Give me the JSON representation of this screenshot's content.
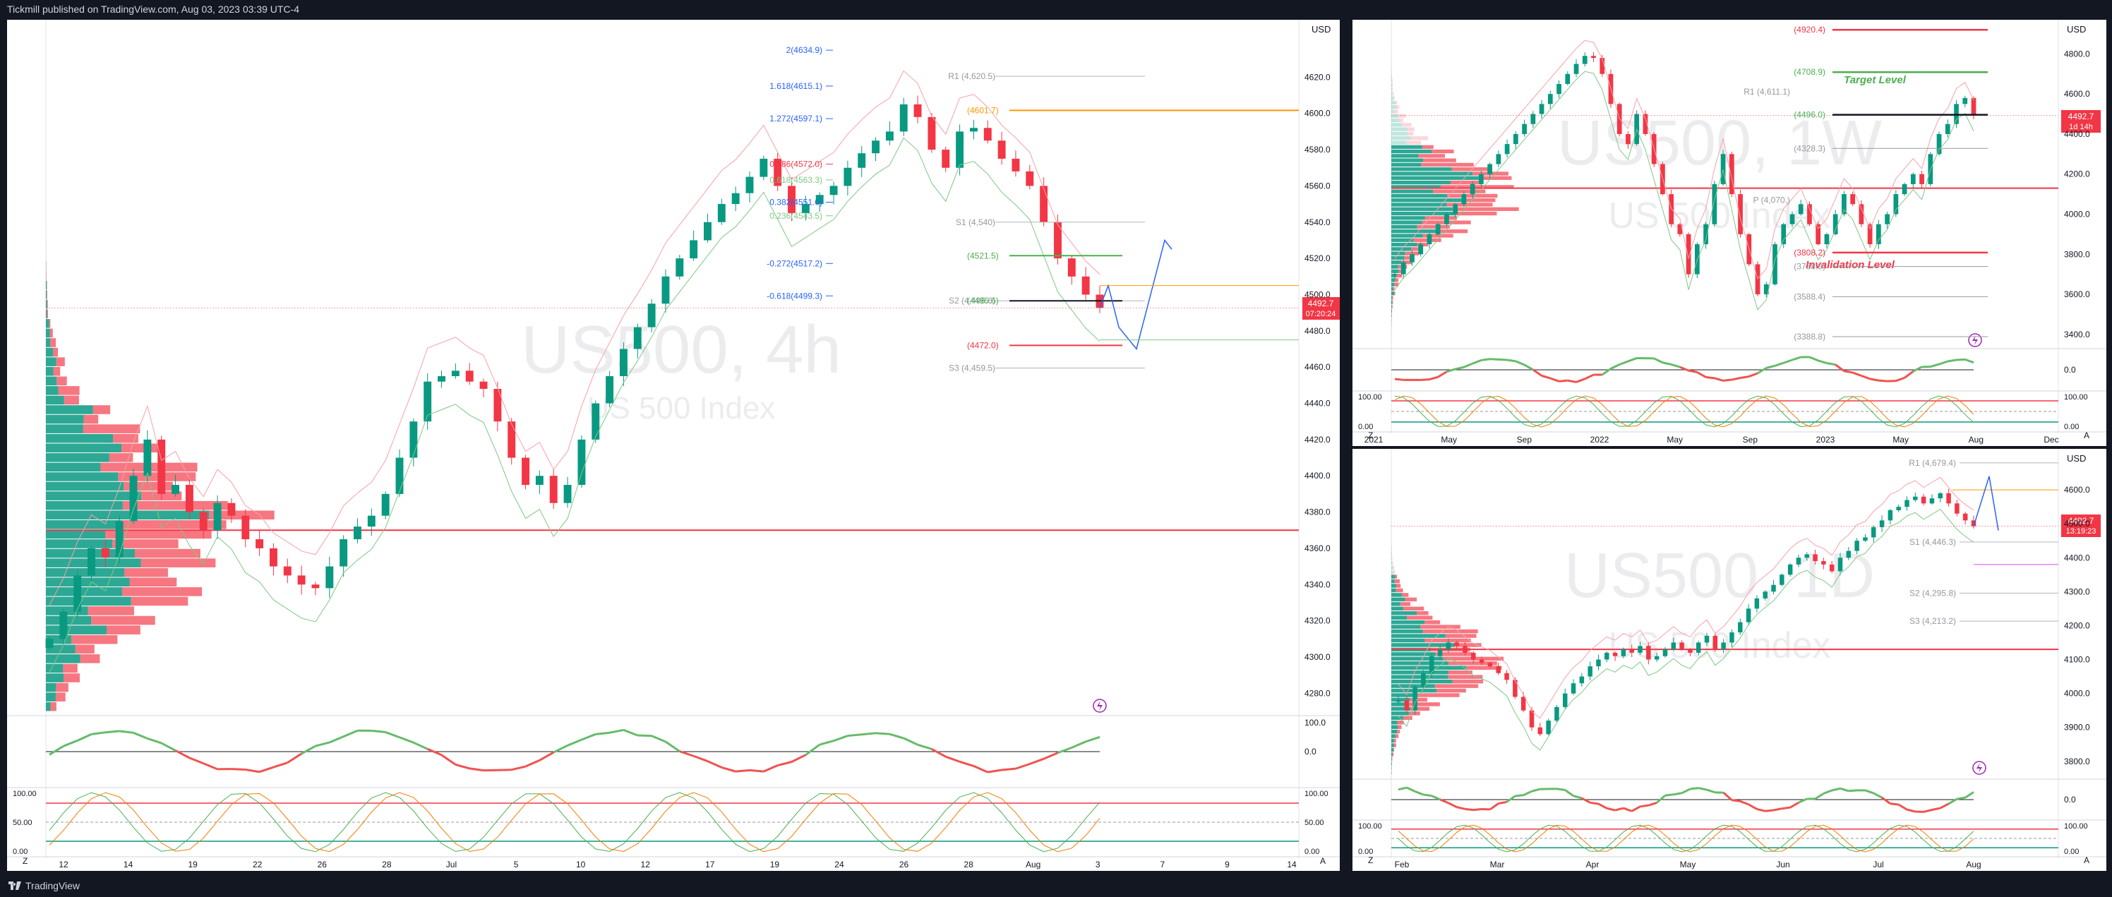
{
  "header": {
    "published": "Tickmill published on TradingView.com, Aug 03, 2023 03:39 UTC-4"
  },
  "footer": {
    "brand": "TradingView",
    "logo_icon": "tradingview-logo-icon"
  },
  "colors": {
    "bull": "#089981",
    "bear": "#f23645",
    "price_tag": "#f23645",
    "fib_blue": "#2962ff",
    "pivot_gray": "#9598a1",
    "target_green": "#4caf50",
    "orange": "#ff9800"
  },
  "main_panel": {
    "currency": "USD",
    "watermark_symbol": "US500, 4h",
    "watermark_name": "US 500 Index",
    "price_tag": "4492.7",
    "price_timer": "07:20:24",
    "price_axis": [
      "4620.0",
      "4600.0",
      "4580.0",
      "4560.0",
      "4540.0",
      "4520.0",
      "4500.0",
      "4480.0",
      "4460.0",
      "4440.0",
      "4420.0",
      "4400.0",
      "4380.0",
      "4360.0",
      "4340.0",
      "4320.0",
      "4300.0",
      "4280.0"
    ],
    "time_axis": [
      "12",
      "14",
      "19",
      "22",
      "26",
      "28",
      "Jul",
      "5",
      "10",
      "12",
      "17",
      "19",
      "24",
      "26",
      "28",
      "Aug",
      "3",
      "7",
      "9",
      "14"
    ],
    "fib_labels": [
      "2(4634.9)",
      "1.618(4615.1)",
      "1.272(4597.1)",
      "0.786(4572.0)",
      "0.618(4563.3)",
      "0.382(4551.0)",
      "0.236(4543.5)",
      "-0.272(4517.2)",
      "-0.618(4499.3)"
    ],
    "pivot_labels": [
      "R1 (4,620.5)",
      "S1 (4,540)",
      "S2 (4,496.6)",
      "S3 (4,459.5)"
    ],
    "level_labels": [
      "4601.7",
      "4521.5",
      "4496.6",
      "4472.0"
    ],
    "osc1_axis": [
      "100.0",
      "0.0"
    ],
    "osc2_axis": [
      "100.00",
      "50.00",
      "0.00"
    ],
    "corner_z": "Z",
    "corner_a": "A",
    "lightning_icon": "lightning-icon"
  },
  "weekly_panel": {
    "currency": "USD",
    "watermark_symbol": "US500, 1W",
    "watermark_name": "US 500 Index",
    "price_tag": "4492.7",
    "price_timer": "1d 14h",
    "price_axis": [
      "4800.0",
      "4600.0",
      "4400.0",
      "4200.0",
      "4000.0",
      "3800.0",
      "3600.0",
      "3400.0"
    ],
    "time_axis": [
      "2021",
      "May",
      "Sep",
      "2022",
      "May",
      "Sep",
      "2023",
      "May",
      "Aug",
      "Dec"
    ],
    "level_labels": [
      "4920.4",
      "4708.9",
      "4496.0",
      "4328.3",
      "3808.2",
      "3738.9",
      "3588.4",
      "3388.8"
    ],
    "pivot_labels": [
      "R1 (4,611.1)",
      "P (4,070.)"
    ],
    "annotations": [
      "Target Level",
      "Invalidation Level"
    ],
    "osc1_axis": [
      "0.0"
    ],
    "osc2_axis": [
      "100.00",
      "0.00"
    ],
    "corner_z": "Z",
    "corner_a": "A"
  },
  "daily_panel": {
    "currency": "USD",
    "watermark_symbol": "US500, 1D",
    "watermark_name": "US 500 Index",
    "price_tag": "4492.7",
    "price_timer": "13:19:23",
    "price_axis": [
      "4600.0",
      "4500.0",
      "4400.0",
      "4300.0",
      "4200.0",
      "4100.0",
      "4000.0",
      "3900.0",
      "3800.0"
    ],
    "time_axis": [
      "Feb",
      "Mar",
      "Apr",
      "May",
      "Jun",
      "Jul",
      "Aug"
    ],
    "pivot_labels": [
      "R1 (4,679.4)",
      "S1 (4,446.3)",
      "S2 (4,295.8)",
      "S3 (4,213.2)"
    ],
    "osc1_axis": [
      "0.0"
    ],
    "osc2_axis": [
      "100.00",
      "0.00"
    ],
    "corner_z": "Z",
    "corner_a": "A"
  },
  "chart_data": [
    {
      "type": "candlestick",
      "timeframe": "4h",
      "symbol": "US500",
      "ylim": [
        4270,
        4640
      ],
      "last_price": 4492.7,
      "close_path": [
        4310,
        4325,
        4345,
        4360,
        4355,
        4375,
        4400,
        4420,
        4390,
        4395,
        4380,
        4370,
        4385,
        4378,
        4365,
        4360,
        4350,
        4345,
        4340,
        4338,
        4350,
        4365,
        4372,
        4378,
        4390,
        4410,
        4430,
        4452,
        4455,
        4458,
        4452,
        4448,
        4430,
        4410,
        4395,
        4400,
        4385,
        4395,
        4420,
        4440,
        4455,
        4470,
        4482,
        4495,
        4510,
        4520,
        4530,
        4540,
        4550,
        4556,
        4565,
        4575,
        4560,
        4545,
        4550,
        4555,
        4560,
        4570,
        4578,
        4585,
        4590,
        4605,
        4598,
        4580,
        4570,
        4590,
        4592,
        4585,
        4575,
        4568,
        4560,
        4540,
        4520,
        4510,
        4500,
        4492.7
      ],
      "levels": {
        "r1": 4620.5,
        "s1": 4540,
        "s2": 4496.6,
        "s3": 4459.5,
        "resistance": 4601.7,
        "level_4521": 4521.5,
        "level_4472": 4472.0,
        "support_red": 4370
      }
    },
    {
      "type": "candlestick",
      "timeframe": "1W",
      "symbol": "US500",
      "ylim": [
        3350,
        4900
      ],
      "last_price": 4492.7,
      "close_path": [
        3700,
        3760,
        3800,
        3850,
        3900,
        3950,
        4000,
        4050,
        4100,
        4150,
        4200,
        4250,
        4300,
        4350,
        4400,
        4450,
        4500,
        4550,
        4600,
        4650,
        4700,
        4750,
        4790,
        4780,
        4700,
        4550,
        4400,
        4350,
        4500,
        4400,
        4250,
        4100,
        3950,
        3900,
        3700,
        3850,
        3950,
        4150,
        4300,
        4100,
        3900,
        3750,
        3600,
        3650,
        3850,
        3950,
        4000,
        4050,
        3950,
        3850,
        3900,
        4000,
        4100,
        4050,
        3950,
        3850,
        3950,
        4000,
        4100,
        4150,
        4200,
        4150,
        4300,
        4400,
        4450,
        4550,
        4580,
        4492.7
      ],
      "levels": {
        "target": 4708.9,
        "r1": 4611.1,
        "key": 4496.0,
        "pivot": 4070.0,
        "invalidation": 3808.2,
        "support_red": 4130
      }
    },
    {
      "type": "candlestick",
      "timeframe": "1D",
      "symbol": "US500",
      "ylim": [
        3760,
        4700
      ],
      "last_price": 4492.7,
      "close_path": [
        3980,
        3950,
        4020,
        4060,
        4110,
        4130,
        4150,
        4140,
        4120,
        4100,
        4090,
        4080,
        4060,
        4040,
        3990,
        3950,
        3900,
        3880,
        3920,
        3960,
        4000,
        4030,
        4050,
        4080,
        4100,
        4120,
        4110,
        4130,
        4120,
        4140,
        4100,
        4110,
        4130,
        4150,
        4130,
        4120,
        4150,
        4170,
        4130,
        4150,
        4180,
        4210,
        4250,
        4280,
        4300,
        4320,
        4350,
        4380,
        4400,
        4410,
        4390,
        4380,
        4360,
        4400,
        4420,
        4450,
        4460,
        4490,
        4510,
        4540,
        4550,
        4570,
        4580,
        4560,
        4575,
        4590,
        4560,
        4530,
        4510,
        4492.7
      ],
      "levels": {
        "r1": 4679.4,
        "s1": 4446.3,
        "s2": 4295.8,
        "s3": 4213.2,
        "support_red": 4130
      }
    }
  ]
}
